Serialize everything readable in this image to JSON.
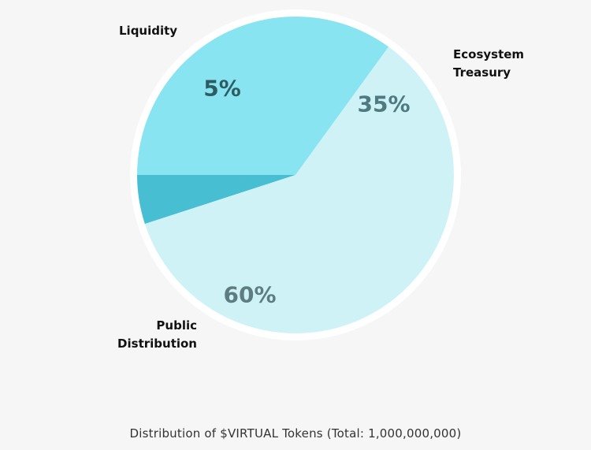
{
  "chart_data": {
    "type": "pie",
    "categories": [
      "Liquidity",
      "Ecosystem Treasury",
      "Public Distribution"
    ],
    "values": [
      5,
      35,
      60
    ],
    "slice_labels": [
      "5%",
      "35%",
      "60%"
    ],
    "category_lines": [
      [
        "Liquidity"
      ],
      [
        "Ecosystem",
        "Treasury"
      ],
      [
        "Public",
        "Distribution"
      ]
    ],
    "colors": [
      "#47bed2",
      "#89e4f1",
      "#cff2f7"
    ],
    "percent_label_colors": [
      "#2e5c63",
      "#4e7a80",
      "#5e7d80"
    ],
    "border_color": "#ffffff",
    "caption": "Distribution of $VIRTUAL Tokens (Total: 1,000,000,000)"
  }
}
